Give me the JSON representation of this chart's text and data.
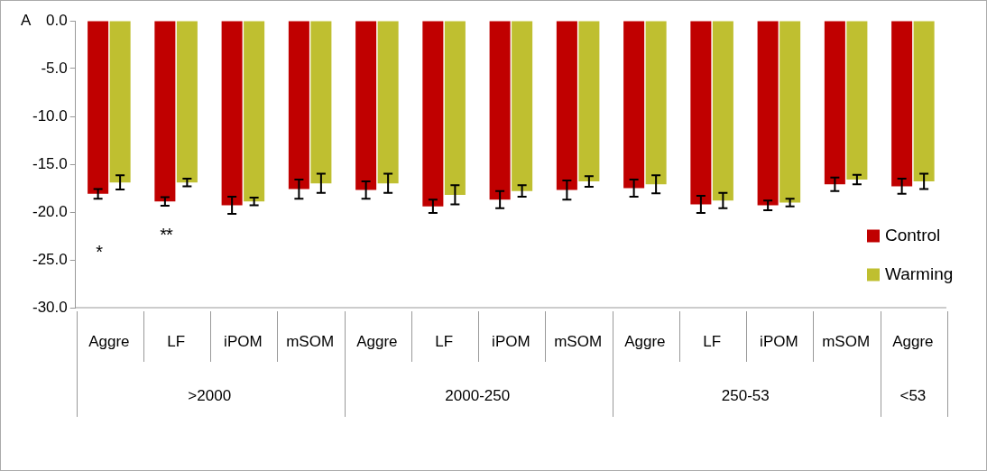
{
  "chart_data": {
    "type": "bar",
    "categories": [
      "Aggre",
      "LF",
      "iPOM",
      "mSOM",
      "Aggre",
      "LF",
      "iPOM",
      "mSOM",
      "Aggre",
      "LF",
      "iPOM",
      "mSOM",
      "Aggre"
    ],
    "series": [
      {
        "name": "Control",
        "color": "#c00000",
        "values": [
          -18.1,
          -18.9,
          -19.3,
          -17.6,
          -17.7,
          -19.4,
          -18.7,
          -17.7,
          -17.5,
          -19.2,
          -19.3,
          -17.1,
          -17.3
        ],
        "errors": [
          0.5,
          0.45,
          0.9,
          1.0,
          0.9,
          0.7,
          0.9,
          1.0,
          0.9,
          0.9,
          0.5,
          0.7,
          0.8
        ]
      },
      {
        "name": "Warming",
        "color": "#bfbf30",
        "values": [
          -16.9,
          -16.9,
          -18.9,
          -17.0,
          -17.0,
          -18.2,
          -17.8,
          -16.8,
          -17.1,
          -18.8,
          -19.0,
          -16.6,
          -16.8
        ],
        "errors": [
          0.75,
          0.4,
          0.4,
          1.0,
          1.0,
          1.0,
          0.6,
          0.55,
          0.95,
          0.8,
          0.4,
          0.5,
          0.8
        ]
      }
    ],
    "ylim": [
      -30,
      0
    ],
    "yticks": [
      {
        "value": 0,
        "label": "0.0"
      },
      {
        "value": -5,
        "label": "-5.0"
      },
      {
        "value": -10,
        "label": "-10.0"
      },
      {
        "value": -15,
        "label": "-15.0"
      },
      {
        "value": -20,
        "label": "-20.0"
      },
      {
        "value": -25,
        "label": "-25.0"
      },
      {
        "value": -30,
        "label": "-30.0"
      }
    ],
    "grid": false,
    "legend": "right",
    "annotations": [
      "A",
      ">2000",
      "2000-250",
      "250-53",
      "<53",
      "*",
      "**"
    ]
  }
}
